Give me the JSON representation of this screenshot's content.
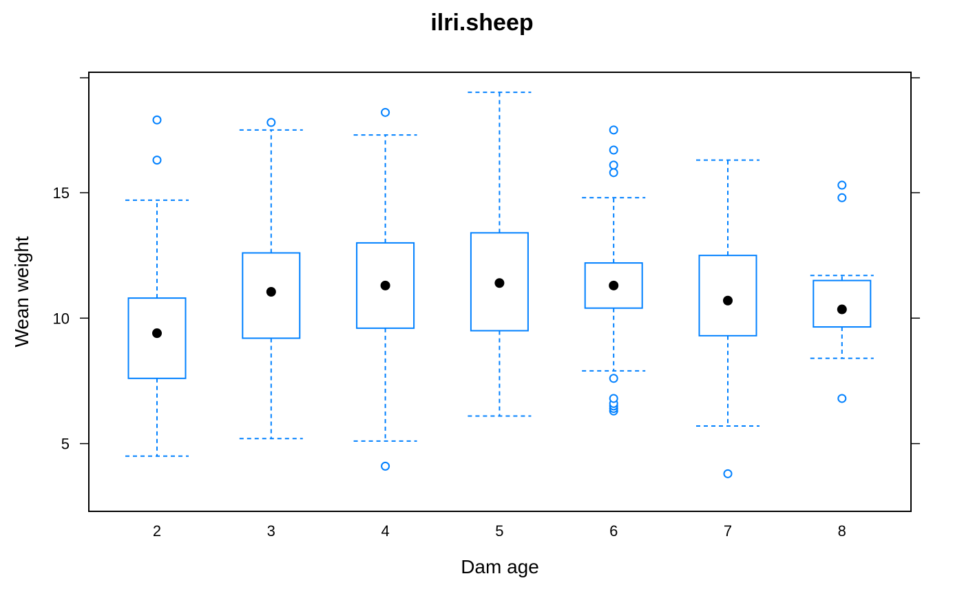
{
  "chart_data": {
    "type": "box",
    "title": "ilri.sheep",
    "xlabel": "Dam age",
    "ylabel": "Wean weight",
    "categories": [
      "2",
      "3",
      "4",
      "5",
      "6",
      "7",
      "8"
    ],
    "x_tick_labels": [
      "2",
      "3",
      "4",
      "5",
      "6",
      "7",
      "8"
    ],
    "y_tick_labels": [
      "5",
      "10",
      "15"
    ],
    "y_ticks": [
      5,
      10,
      15
    ],
    "ylim": [
      2.3,
      19.8
    ],
    "grid": false,
    "legend": "none",
    "colors": {
      "box": "#0080ff",
      "median_dot": "#000000",
      "frame": "#000000"
    },
    "boxes": [
      {
        "category": "2",
        "whisker_low": 4.5,
        "q1": 7.6,
        "median": 9.4,
        "q3": 10.8,
        "whisker_high": 14.7,
        "outliers": [
          16.3,
          17.9
        ]
      },
      {
        "category": "3",
        "whisker_low": 5.2,
        "q1": 9.2,
        "median": 11.05,
        "q3": 12.6,
        "whisker_high": 17.5,
        "outliers": [
          17.8
        ]
      },
      {
        "category": "4",
        "whisker_low": 5.1,
        "q1": 9.6,
        "median": 11.3,
        "q3": 13.0,
        "whisker_high": 17.3,
        "outliers": [
          4.1,
          18.2
        ]
      },
      {
        "category": "5",
        "whisker_low": 6.1,
        "q1": 9.5,
        "median": 11.4,
        "q3": 13.4,
        "whisker_high": 19.0,
        "outliers": []
      },
      {
        "category": "6",
        "whisker_low": 7.9,
        "q1": 10.4,
        "median": 11.3,
        "q3": 12.2,
        "whisker_high": 14.8,
        "outliers": [
          6.3,
          6.4,
          6.5,
          6.6,
          6.8,
          7.6,
          15.8,
          16.1,
          16.7,
          17.5
        ]
      },
      {
        "category": "7",
        "whisker_low": 5.7,
        "q1": 9.3,
        "median": 10.7,
        "q3": 12.5,
        "whisker_high": 16.3,
        "outliers": [
          3.8
        ]
      },
      {
        "category": "8",
        "whisker_low": 8.4,
        "q1": 9.65,
        "median": 10.35,
        "q3": 11.5,
        "whisker_high": 11.7,
        "outliers": [
          6.8,
          14.8,
          15.3
        ]
      }
    ]
  }
}
